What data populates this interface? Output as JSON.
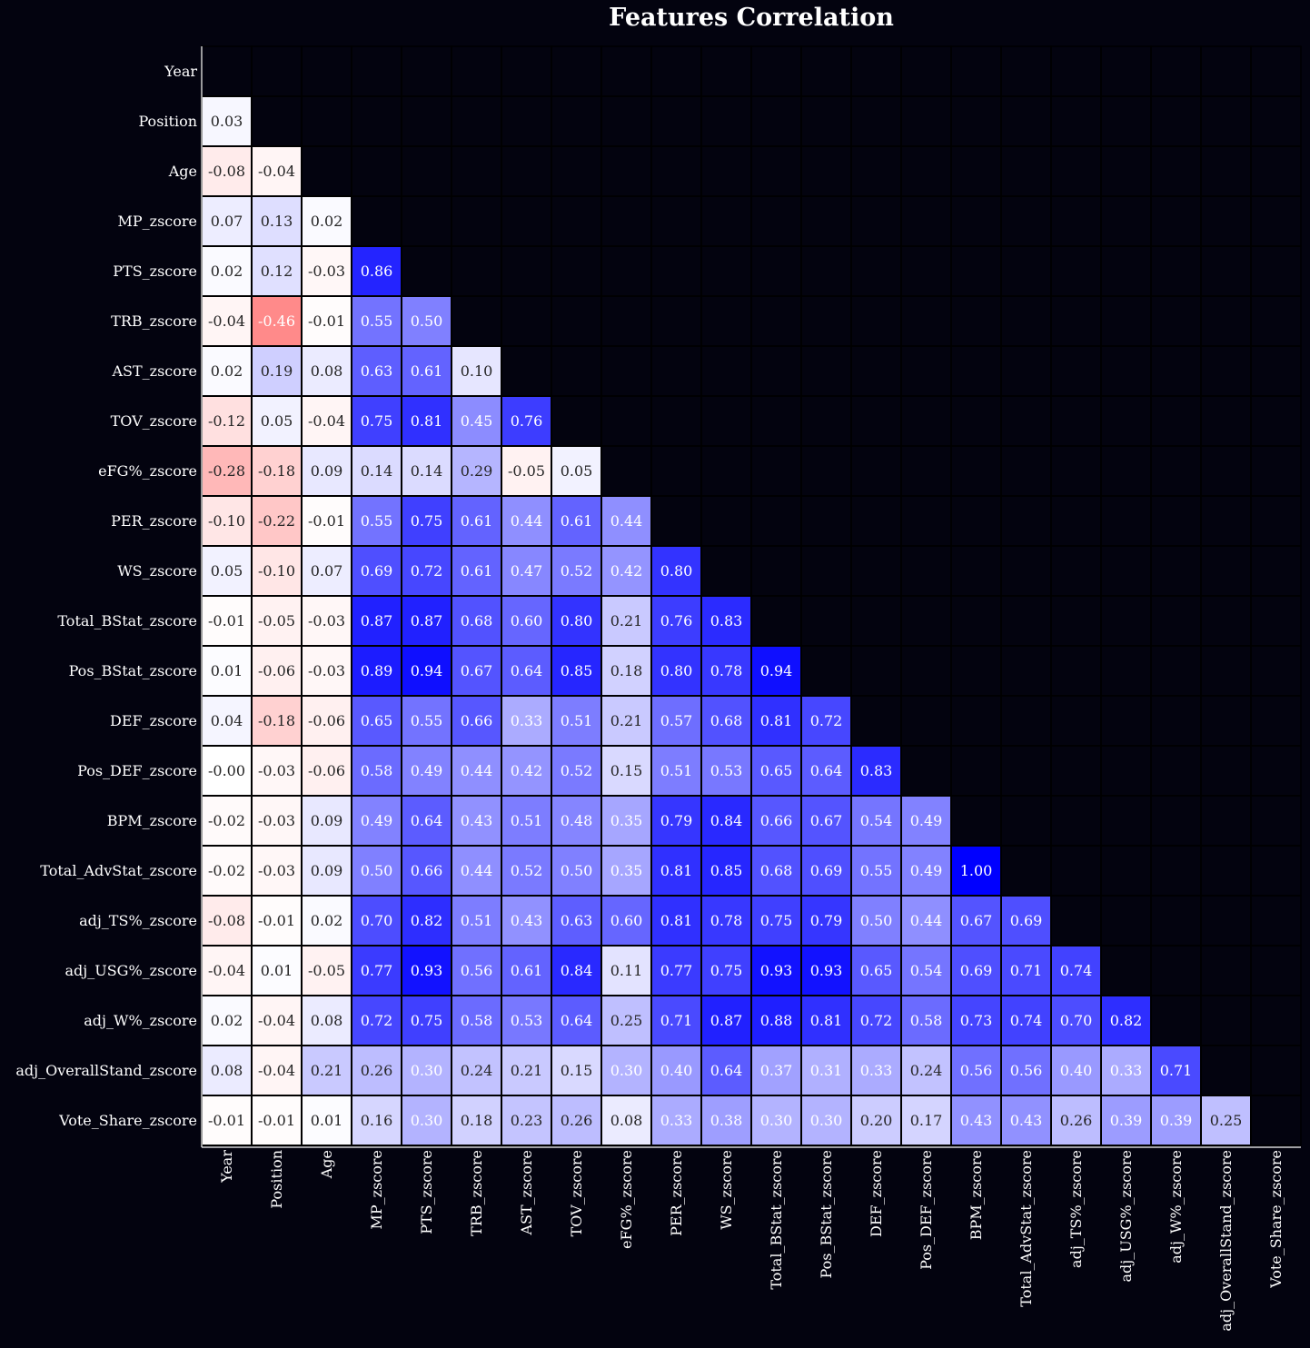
{
  "chart_data": {
    "type": "heatmap",
    "title": "Features Correlation",
    "labels": [
      "Year",
      "Position",
      "Age",
      "MP_zscore",
      "PTS_zscore",
      "TRB_zscore",
      "AST_zscore",
      "TOV_zscore",
      "eFG%_zscore",
      "PER_zscore",
      "WS_zscore",
      "Total_BStat_zscore",
      "Pos_BStat_zscore",
      "DEF_zscore",
      "Pos_DEF_zscore",
      "BPM_zscore",
      "Total_AdvStat_zscore",
      "adj_TS%_zscore",
      "adj_USG%_zscore",
      "adj_W%_zscore",
      "adj_OverallStand_zscore",
      "Vote_Share_zscore"
    ],
    "lower_triangle_values": [
      [],
      [
        0.03
      ],
      [
        -0.08,
        -0.04
      ],
      [
        0.07,
        0.13,
        0.02
      ],
      [
        0.02,
        0.12,
        -0.03,
        0.86
      ],
      [
        -0.04,
        -0.46,
        -0.01,
        0.55,
        0.5
      ],
      [
        0.02,
        0.19,
        0.08,
        0.63,
        0.61,
        0.1
      ],
      [
        -0.12,
        0.05,
        -0.04,
        0.75,
        0.81,
        0.45,
        0.76
      ],
      [
        -0.28,
        -0.18,
        0.09,
        0.14,
        0.14,
        0.29,
        -0.05,
        0.05
      ],
      [
        -0.1,
        -0.22,
        -0.01,
        0.55,
        0.75,
        0.61,
        0.44,
        0.61,
        0.44
      ],
      [
        0.05,
        -0.1,
        0.07,
        0.69,
        0.72,
        0.61,
        0.47,
        0.52,
        0.42,
        0.8
      ],
      [
        -0.01,
        -0.05,
        -0.03,
        0.87,
        0.87,
        0.68,
        0.6,
        0.8,
        0.21,
        0.76,
        0.83
      ],
      [
        0.01,
        -0.06,
        -0.03,
        0.89,
        0.94,
        0.67,
        0.64,
        0.85,
        0.18,
        0.8,
        0.78,
        0.94
      ],
      [
        0.04,
        -0.18,
        -0.06,
        0.65,
        0.55,
        0.66,
        0.33,
        0.51,
        0.21,
        0.57,
        0.68,
        0.81,
        0.72
      ],
      [
        -0.0,
        -0.03,
        -0.06,
        0.58,
        0.49,
        0.44,
        0.42,
        0.52,
        0.15,
        0.51,
        0.53,
        0.65,
        0.64,
        0.83
      ],
      [
        -0.02,
        -0.03,
        0.09,
        0.49,
        0.64,
        0.43,
        0.51,
        0.48,
        0.35,
        0.79,
        0.84,
        0.66,
        0.67,
        0.54,
        0.49
      ],
      [
        -0.02,
        -0.03,
        0.09,
        0.5,
        0.66,
        0.44,
        0.52,
        0.5,
        0.35,
        0.81,
        0.85,
        0.68,
        0.69,
        0.55,
        0.49,
        1.0
      ],
      [
        -0.08,
        -0.01,
        0.02,
        0.7,
        0.82,
        0.51,
        0.43,
        0.63,
        0.6,
        0.81,
        0.78,
        0.75,
        0.79,
        0.5,
        0.44,
        0.67,
        0.69
      ],
      [
        -0.04,
        0.01,
        -0.05,
        0.77,
        0.93,
        0.56,
        0.61,
        0.84,
        0.11,
        0.77,
        0.75,
        0.93,
        0.93,
        0.65,
        0.54,
        0.69,
        0.71,
        0.74
      ],
      [
        0.02,
        -0.04,
        0.08,
        0.72,
        0.75,
        0.58,
        0.53,
        0.64,
        0.25,
        0.71,
        0.87,
        0.88,
        0.81,
        0.72,
        0.58,
        0.73,
        0.74,
        0.7,
        0.82
      ],
      [
        0.08,
        -0.04,
        0.21,
        0.26,
        0.3,
        0.24,
        0.21,
        0.15,
        0.3,
        0.4,
        0.64,
        0.37,
        0.31,
        0.33,
        0.24,
        0.56,
        0.56,
        0.4,
        0.33,
        0.71
      ],
      [
        -0.01,
        -0.01,
        0.01,
        0.16,
        0.3,
        0.18,
        0.23,
        0.26,
        0.08,
        0.33,
        0.38,
        0.3,
        0.3,
        0.2,
        0.17,
        0.43,
        0.43,
        0.26,
        0.39,
        0.39,
        0.25
      ]
    ],
    "value_format": "2 decimals",
    "mask": "upper triangle including diagonal",
    "colormap": "bwr (negative red, zero white, positive blue)",
    "vmin": -1,
    "vmax": 1,
    "colors": {
      "background": "#03030f",
      "positive": "#0000ff",
      "negative": "#ff0000",
      "zero": "#ffffff",
      "cell_border": "#000000",
      "axis_text": "#ffffff"
    },
    "grid": false,
    "legend": "none"
  }
}
